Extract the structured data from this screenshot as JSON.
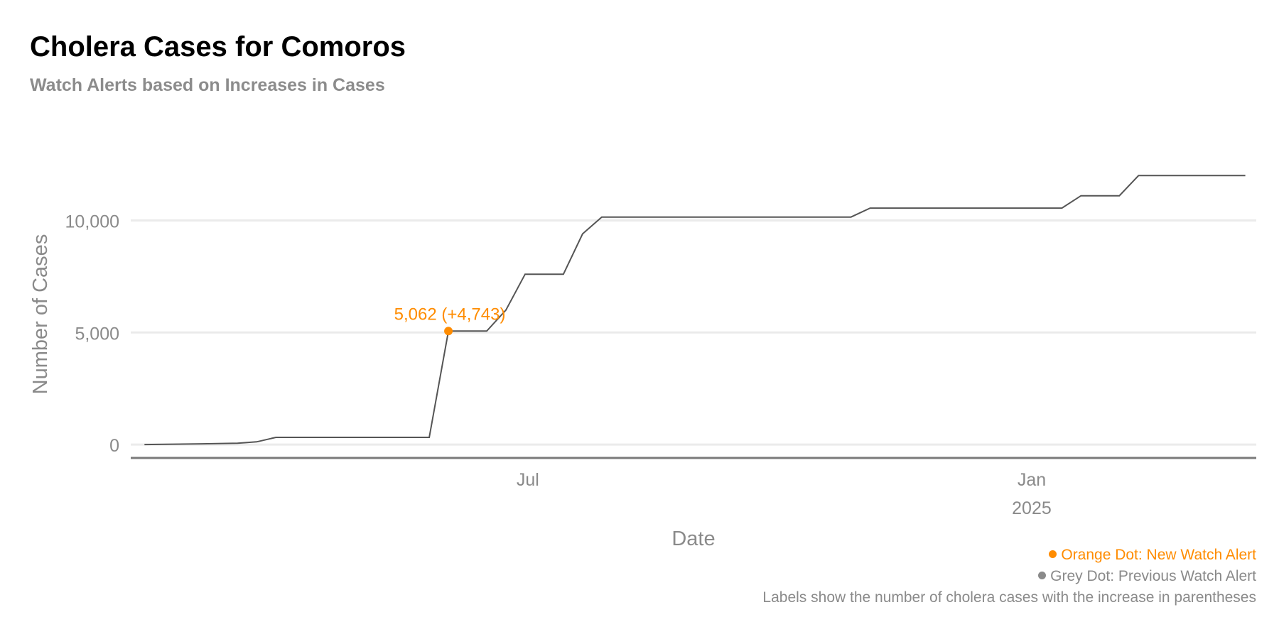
{
  "header": {
    "title": "Cholera Cases for Comoros",
    "subtitle": "Watch Alerts based on Increases in Cases"
  },
  "legend": {
    "orange_label": "Orange Dot: New Watch Alert",
    "grey_label": "Grey Dot: Previous Watch Alert",
    "note": "Labels show the number of cholera cases with the increase in parentheses"
  },
  "colors": {
    "line": "#555555",
    "new_alert": "#ff8c00",
    "previous_alert": "#8a8a8a",
    "grid": "#ebebeb",
    "axis": "#8a8a8a"
  },
  "chart_data": {
    "type": "line",
    "title": "Cholera Cases for Comoros",
    "subtitle": "Watch Alerts based on Increases in Cases",
    "xlabel": "Date",
    "ylabel": "Number of Cases",
    "xlim": [
      "2024-02-07",
      "2025-03-24"
    ],
    "ylim": [
      -600,
      13500
    ],
    "yticks": [
      0,
      5000,
      10000
    ],
    "ytick_labels": [
      "0",
      "5,000",
      "10,000"
    ],
    "xticks": [
      {
        "date": "2024-07-01",
        "label": "Jul",
        "sublabel": ""
      },
      {
        "date": "2025-01-01",
        "label": "Jan",
        "sublabel": "2025"
      }
    ],
    "grid": true,
    "legend": "bottom-right",
    "series": [
      {
        "points": [
          {
            "x": "2024-02-12",
            "y": 0
          },
          {
            "x": "2024-03-04",
            "y": 30
          },
          {
            "x": "2024-03-17",
            "y": 60
          },
          {
            "x": "2024-03-24",
            "y": 120
          },
          {
            "x": "2024-03-31",
            "y": 319
          },
          {
            "x": "2024-05-26",
            "y": 319
          },
          {
            "x": "2024-06-02",
            "y": 5062
          },
          {
            "x": "2024-06-16",
            "y": 5062
          },
          {
            "x": "2024-06-23",
            "y": 6000
          },
          {
            "x": "2024-06-30",
            "y": 7600
          },
          {
            "x": "2024-07-14",
            "y": 7600
          },
          {
            "x": "2024-07-21",
            "y": 9400
          },
          {
            "x": "2024-07-28",
            "y": 10150
          },
          {
            "x": "2024-10-27",
            "y": 10150
          },
          {
            "x": "2024-11-03",
            "y": 10550
          },
          {
            "x": "2025-01-12",
            "y": 10550
          },
          {
            "x": "2025-01-19",
            "y": 11100
          },
          {
            "x": "2025-02-02",
            "y": 11100
          },
          {
            "x": "2025-02-09",
            "y": 12000
          },
          {
            "x": "2025-03-20",
            "y": 12000
          }
        ]
      }
    ],
    "alerts": [
      {
        "x": "2024-06-02",
        "y": 5062,
        "label": "5,062 (+4,743)",
        "type": "new"
      }
    ]
  }
}
